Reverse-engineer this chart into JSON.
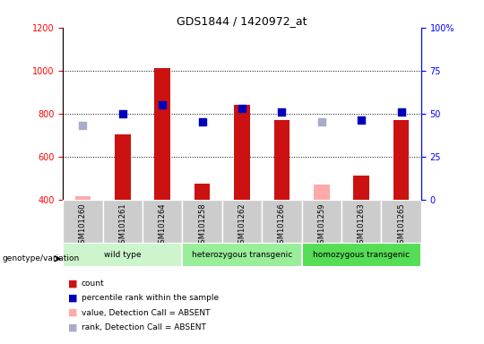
{
  "title": "GDS1844 / 1420972_at",
  "samples": [
    "GSM101260",
    "GSM101261",
    "GSM101264",
    "GSM101258",
    "GSM101262",
    "GSM101266",
    "GSM101259",
    "GSM101263",
    "GSM101265"
  ],
  "groups": [
    {
      "name": "wild type",
      "indices": [
        0,
        1,
        2
      ],
      "color": "#ccf5cc"
    },
    {
      "name": "heterozygous transgenic",
      "indices": [
        3,
        4,
        5
      ],
      "color": "#99ee99"
    },
    {
      "name": "homozygous transgenic",
      "indices": [
        6,
        7,
        8
      ],
      "color": "#55dd55"
    }
  ],
  "count_values": [
    415,
    705,
    1010,
    475,
    840,
    770,
    470,
    510,
    770
  ],
  "count_absent": [
    true,
    false,
    false,
    false,
    false,
    false,
    true,
    false,
    false
  ],
  "percentile_values": [
    43,
    50,
    55,
    45,
    53,
    51,
    45,
    46,
    51
  ],
  "percentile_absent": [
    true,
    false,
    false,
    false,
    false,
    false,
    true,
    false,
    false
  ],
  "ylim_left": [
    400,
    1200
  ],
  "ylim_right": [
    0,
    100
  ],
  "yticks_left": [
    400,
    600,
    800,
    1000,
    1200
  ],
  "yticks_right": [
    0,
    25,
    50,
    75,
    100
  ],
  "bar_color_present": "#cc1111",
  "bar_color_absent": "#ffaaaa",
  "dot_color_present": "#0000bb",
  "dot_color_absent": "#aaaacc",
  "bar_width": 0.4,
  "dot_size": 40,
  "gray_box_color": "#cccccc",
  "legend_items": [
    {
      "color": "#cc1111",
      "label": "count"
    },
    {
      "color": "#0000bb",
      "label": "percentile rank within the sample"
    },
    {
      "color": "#ffaaaa",
      "label": "value, Detection Call = ABSENT"
    },
    {
      "color": "#aaaacc",
      "label": "rank, Detection Call = ABSENT"
    }
  ]
}
